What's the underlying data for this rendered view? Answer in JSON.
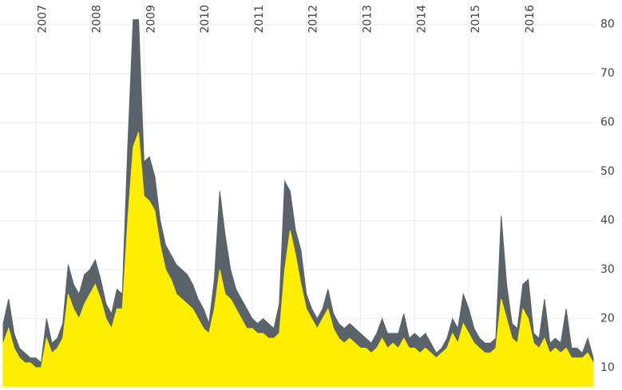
{
  "chart_data": {
    "type": "area",
    "x": [
      2006.4,
      2006.5,
      2006.6,
      2006.7,
      2006.8,
      2006.9,
      2007.0,
      2007.1,
      2007.2,
      2007.3,
      2007.4,
      2007.5,
      2007.6,
      2007.7,
      2007.8,
      2007.9,
      2008.0,
      2008.1,
      2008.2,
      2008.3,
      2008.4,
      2008.5,
      2008.6,
      2008.7,
      2008.8,
      2008.9,
      2009.0,
      2009.1,
      2009.2,
      2009.3,
      2009.4,
      2009.5,
      2009.6,
      2009.7,
      2009.8,
      2009.9,
      2010.0,
      2010.1,
      2010.2,
      2010.3,
      2010.4,
      2010.5,
      2010.6,
      2010.7,
      2010.8,
      2010.9,
      2011.0,
      2011.1,
      2011.2,
      2011.3,
      2011.4,
      2011.5,
      2011.6,
      2011.7,
      2011.8,
      2011.9,
      2012.0,
      2012.1,
      2012.2,
      2012.3,
      2012.4,
      2012.5,
      2012.6,
      2012.7,
      2012.8,
      2012.9,
      2013.0,
      2013.1,
      2013.2,
      2013.3,
      2013.4,
      2013.5,
      2013.6,
      2013.7,
      2013.8,
      2013.9,
      2014.0,
      2014.1,
      2014.2,
      2014.3,
      2014.4,
      2014.5,
      2014.6,
      2014.7,
      2014.8,
      2014.9,
      2015.0,
      2015.1,
      2015.2,
      2015.3,
      2015.4,
      2015.5,
      2015.6,
      2015.7,
      2015.8,
      2015.9,
      2016.0,
      2016.1,
      2016.2,
      2016.3,
      2016.4,
      2016.5,
      2016.6,
      2016.7,
      2016.8,
      2016.9,
      2017.0,
      2017.1,
      2017.2,
      2017.3
    ],
    "series": [
      {
        "color": "#5a636a",
        "values": [
          19,
          24,
          17,
          14,
          13,
          12,
          12,
          11,
          20,
          15,
          16,
          19,
          31,
          27,
          25,
          29,
          30,
          32,
          28,
          23,
          21,
          26,
          25,
          55,
          81,
          81,
          52,
          53,
          49,
          40,
          35,
          33,
          31,
          30,
          29,
          27,
          24,
          22,
          19,
          28,
          46,
          37,
          30,
          26,
          24,
          22,
          20,
          19,
          20,
          19,
          18,
          23,
          48,
          46,
          38,
          34,
          25,
          22,
          20,
          22,
          26,
          21,
          19,
          18,
          19,
          18,
          17,
          16,
          15,
          17,
          20,
          17,
          17,
          17,
          21,
          16,
          17,
          16,
          17,
          15,
          13,
          14,
          16,
          20,
          18,
          25,
          22,
          18,
          16,
          15,
          15,
          16,
          41,
          27,
          19,
          18,
          27,
          28,
          17,
          16,
          24,
          15,
          16,
          15,
          22,
          14,
          14,
          13,
          16,
          12
        ]
      },
      {
        "color": "#ffee00",
        "values": [
          15,
          18,
          14,
          12,
          11,
          11,
          10,
          10,
          16,
          13,
          14,
          16,
          25,
          22,
          20,
          23,
          25,
          27,
          24,
          20,
          18,
          22,
          22,
          40,
          55,
          58,
          45,
          44,
          42,
          35,
          30,
          28,
          25,
          24,
          23,
          22,
          20,
          18,
          17,
          22,
          30,
          25,
          24,
          22,
          20,
          18,
          18,
          17,
          17,
          16,
          16,
          17,
          30,
          38,
          33,
          27,
          22,
          20,
          18,
          20,
          22,
          18,
          16,
          15,
          16,
          15,
          14,
          14,
          13,
          14,
          16,
          14,
          15,
          14,
          16,
          14,
          14,
          13,
          14,
          13,
          12,
          13,
          14,
          17,
          15,
          19,
          17,
          15,
          14,
          13,
          13,
          14,
          24,
          20,
          16,
          15,
          22,
          20,
          15,
          14,
          16,
          13,
          14,
          13,
          14,
          12,
          12,
          12,
          13,
          11
        ]
      }
    ],
    "xlim": [
      2006.34,
      2017.33
    ],
    "xticks": [
      2007,
      2008,
      2009,
      2010,
      2011,
      2012,
      2013,
      2014,
      2015,
      2016
    ],
    "ylim": [
      6.1,
      85
    ],
    "yticks": [
      10,
      20,
      30,
      40,
      50,
      60,
      70,
      80
    ],
    "grid": true
  }
}
